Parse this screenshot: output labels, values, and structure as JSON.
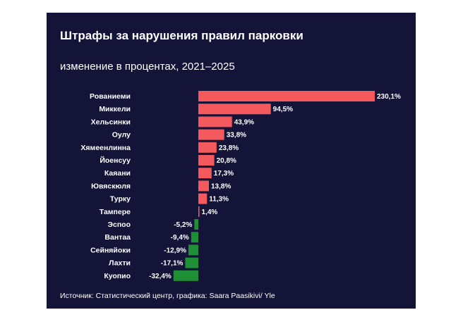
{
  "title": "Штрафы за нарушения правил парковки",
  "subtitle": "изменение в процентах, 2021–2025",
  "source": "Источник: Статистический центр, графика: Saara Paasikivi/ Yle",
  "colors": {
    "background": "#141338",
    "positive": "#f45a5d",
    "negative": "#1f8f36",
    "text": "#ffffff"
  },
  "chart_data": {
    "type": "bar",
    "orientation": "horizontal",
    "categories": [
      "Рованиеми",
      "Миккели",
      "Хельсинки",
      "Оулу",
      "Хямеенлинна",
      "Йоенсуу",
      "Каяани",
      "Ювяскюля",
      "Турку",
      "Тампере",
      "Эспоо",
      "Вантаа",
      "Сейняйоки",
      "Лахти",
      "Куопио"
    ],
    "values": [
      230.1,
      94.5,
      43.9,
      33.8,
      23.8,
      20.8,
      17.3,
      13.8,
      11.3,
      1.4,
      -5.2,
      -9.4,
      -12.9,
      -17.1,
      -32.4
    ],
    "value_labels": [
      "230,1%",
      "94,5%",
      "43,9%",
      "33,8%",
      "23,8%",
      "20,8%",
      "17,3%",
      "13,8%",
      "11,3%",
      "1,4%",
      "-5,2%",
      "-9,4%",
      "-12,9%",
      "-17,1%",
      "-32,4%"
    ],
    "xlim": [
      -32.4,
      230.1
    ],
    "grid": false,
    "legend": "none"
  }
}
